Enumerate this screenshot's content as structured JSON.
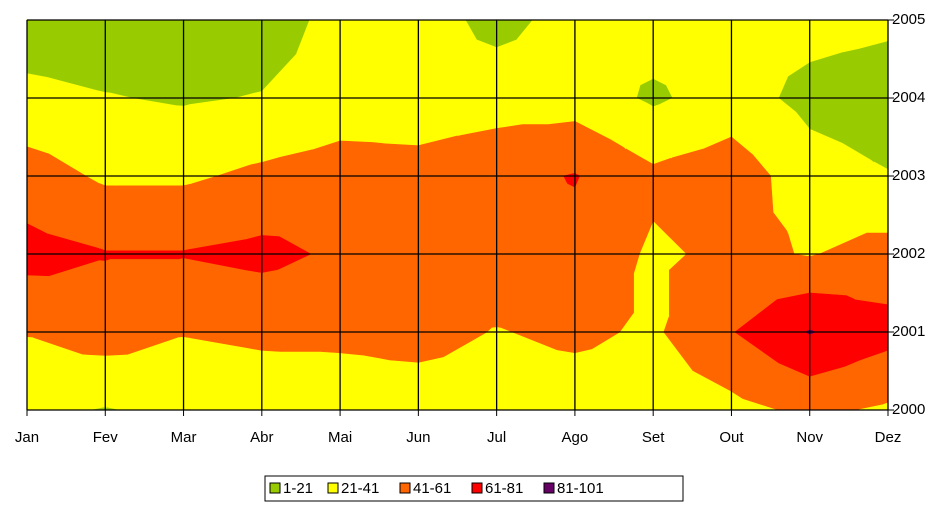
{
  "chart_data": {
    "type": "contour",
    "x": [
      "Jan",
      "Fev",
      "Mar",
      "Abr",
      "Mai",
      "Jun",
      "Jul",
      "Ago",
      "Set",
      "Out",
      "Nov",
      "Dez"
    ],
    "ylim": [
      2000,
      2005
    ],
    "yticks": [
      2000,
      2001,
      2002,
      2003,
      2004,
      2005
    ],
    "z": [
      [
        25,
        20,
        25,
        28,
        30,
        30,
        30,
        30,
        30,
        35,
        45,
        38
      ],
      [
        42,
        50,
        42,
        45,
        45,
        48,
        40,
        45,
        38,
        60,
        82,
        68
      ],
      [
        68,
        62,
        62,
        66,
        58,
        50,
        55,
        55,
        38,
        45,
        40,
        48
      ],
      [
        50,
        38,
        38,
        45,
        50,
        48,
        55,
        62,
        45,
        52,
        30,
        22
      ],
      [
        26,
        22,
        19,
        22,
        30,
        30,
        32,
        32,
        18,
        30,
        15,
        10
      ],
      [
        10,
        8,
        8,
        10,
        28,
        30,
        15,
        28,
        30,
        30,
        28,
        25
      ]
    ],
    "levels": [
      1,
      21,
      41,
      61,
      81,
      101
    ],
    "series": [
      {
        "name": "1-21",
        "color": "#99cc00"
      },
      {
        "name": "21-41",
        "color": "#ffff00"
      },
      {
        "name": "41-61",
        "color": "#ff6600"
      },
      {
        "name": "61-81",
        "color": "#ff0000"
      },
      {
        "name": "81-101",
        "color": "#660066"
      }
    ],
    "grid": true
  }
}
